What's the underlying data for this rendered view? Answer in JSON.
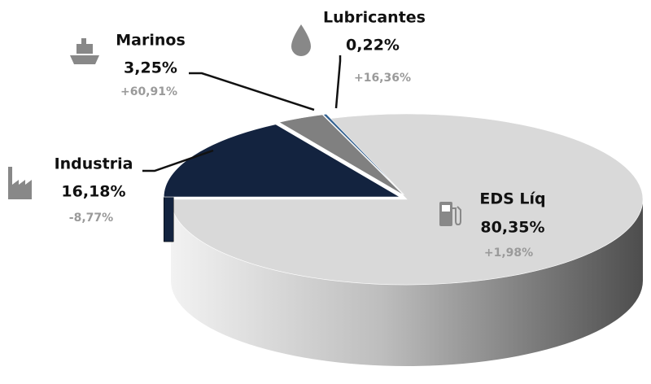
{
  "chart_data": {
    "type": "pie",
    "categories": [
      "EDS Líq",
      "Lubricantes",
      "Marinos",
      "Industria"
    ],
    "values": [
      80.35,
      0.22,
      3.25,
      16.18
    ],
    "value_labels": [
      "80,35%",
      "0,22%",
      "3,25%",
      "16,18%"
    ],
    "changes": [
      "+1,98%",
      "+16,36%",
      "+60,91%",
      "-8,77%"
    ],
    "colors": [
      "#d9d9d9",
      "#2f5f8f",
      "#808080",
      "#13233f"
    ]
  }
}
